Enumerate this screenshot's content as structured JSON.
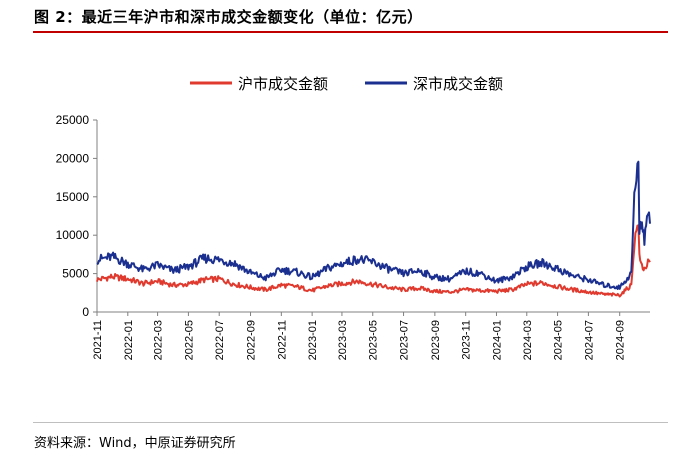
{
  "figure_title": "图 2：最近三年沪市和深市成交金额变化（单位：亿元）",
  "source_note": "资料来源：Wind，中原证券研究所",
  "colors": {
    "sh": "#e03a2f",
    "sz": "#1a2f8f",
    "title_rule": "#c00000",
    "axis": "#808080"
  },
  "chart_data": {
    "type": "line",
    "title": "",
    "xlabel": "",
    "ylabel": "",
    "ylim": [
      0,
      25000
    ],
    "yticks": [
      0,
      5000,
      10000,
      15000,
      20000,
      25000
    ],
    "ytick_labels": [
      "0",
      "5000",
      "10000",
      "15000",
      "20000",
      "25000"
    ],
    "xtick_labels": [
      "2021-11",
      "2022-01",
      "2022-03",
      "2022-05",
      "2022-07",
      "2022-09",
      "2022-11",
      "2023-01",
      "2023-03",
      "2023-05",
      "2023-07",
      "2023-09",
      "2023-11",
      "2024-01",
      "2024-03",
      "2024-05",
      "2024-07",
      "2024-09"
    ],
    "grid": false,
    "legend_position": "top-center",
    "x_start": "2021-11",
    "x_end": "2024-10",
    "series": [
      {
        "name": "沪市成交金额",
        "color": "#e03a2f",
        "x": [
          "2021-11",
          "2021-12",
          "2022-01",
          "2022-02",
          "2022-03",
          "2022-04",
          "2022-05",
          "2022-06",
          "2022-07",
          "2022-08",
          "2022-09",
          "2022-10",
          "2022-11",
          "2022-12",
          "2023-01",
          "2023-02",
          "2023-03",
          "2023-04",
          "2023-05",
          "2023-06",
          "2023-07",
          "2023-08",
          "2023-09",
          "2023-10",
          "2023-11",
          "2023-12",
          "2024-01",
          "2024-02",
          "2024-03",
          "2024-04",
          "2024-05",
          "2024-06",
          "2024-07",
          "2024-08",
          "2024-09",
          "2024-09-24",
          "2024-09-30",
          "2024-10-08",
          "2024-10-10",
          "2024-10-15",
          "2024-10-20",
          "2024-10-25",
          "2024-10-31"
        ],
        "values": [
          4200,
          4600,
          4300,
          3700,
          4000,
          3500,
          3600,
          4200,
          4300,
          3600,
          3200,
          2900,
          3500,
          3300,
          2800,
          3400,
          3700,
          4000,
          3600,
          3200,
          2900,
          3100,
          2700,
          2600,
          2900,
          2800,
          2700,
          2900,
          3600,
          3800,
          3300,
          2900,
          2600,
          2300,
          2200,
          3500,
          9000,
          12000,
          7000,
          6000,
          5600,
          6200,
          6500
        ]
      },
      {
        "name": "深市成交金额",
        "color": "#1a2f8f",
        "x": [
          "2021-11",
          "2021-12",
          "2022-01",
          "2022-02",
          "2022-03",
          "2022-04",
          "2022-05",
          "2022-06",
          "2022-07",
          "2022-08",
          "2022-09",
          "2022-10",
          "2022-11",
          "2022-12",
          "2023-01",
          "2023-02",
          "2023-03",
          "2023-04",
          "2023-05",
          "2023-06",
          "2023-07",
          "2023-08",
          "2023-09",
          "2023-10",
          "2023-11",
          "2023-12",
          "2024-01",
          "2024-02",
          "2024-03",
          "2024-04",
          "2024-05",
          "2024-06",
          "2024-07",
          "2024-08",
          "2024-09",
          "2024-09-24",
          "2024-09-30",
          "2024-10-08",
          "2024-10-10",
          "2024-10-15",
          "2024-10-20",
          "2024-10-25",
          "2024-10-31"
        ],
        "values": [
          6800,
          7200,
          6300,
          5500,
          6100,
          5400,
          5900,
          7000,
          6800,
          6300,
          5100,
          4400,
          5500,
          5200,
          4500,
          5700,
          6300,
          6900,
          6500,
          5600,
          5000,
          5400,
          4500,
          4300,
          5300,
          5000,
          4000,
          4600,
          5900,
          6400,
          5600,
          4700,
          4200,
          3500,
          3200,
          5000,
          15000,
          19500,
          10500,
          12000,
          9500,
          13000,
          11500
        ]
      }
    ]
  }
}
